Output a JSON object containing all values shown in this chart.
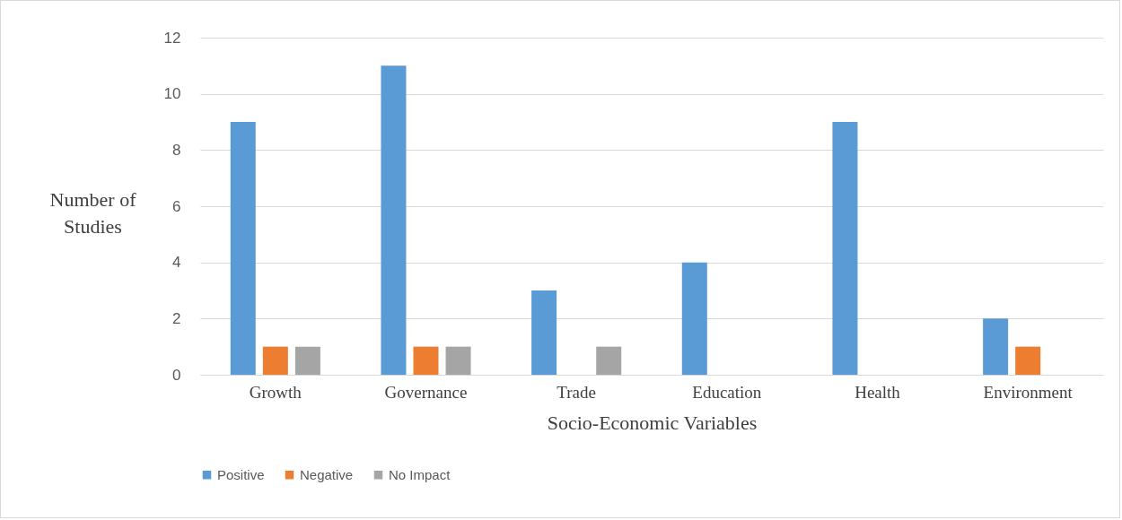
{
  "chart_data": {
    "type": "bar",
    "xlabel": "Socio-Economic Variables",
    "ylabel": "Number of Studies",
    "categories": [
      "Growth",
      "Governance",
      "Trade",
      "Education",
      "Health",
      "Environment"
    ],
    "series": [
      {
        "name": "Positive",
        "color": "#5b9bd5",
        "values": [
          9,
          11,
          3,
          4,
          9,
          2
        ]
      },
      {
        "name": "Negative",
        "color": "#ed7d31",
        "values": [
          1,
          1,
          null,
          null,
          null,
          1
        ]
      },
      {
        "name": "No Impact",
        "color": "#a5a5a5",
        "values": [
          1,
          1,
          1,
          null,
          null,
          null
        ]
      }
    ],
    "ylim": [
      0,
      12
    ],
    "yticks": [
      0,
      2,
      4,
      6,
      8,
      10,
      12
    ],
    "grid": "y",
    "legend": "bottom"
  }
}
